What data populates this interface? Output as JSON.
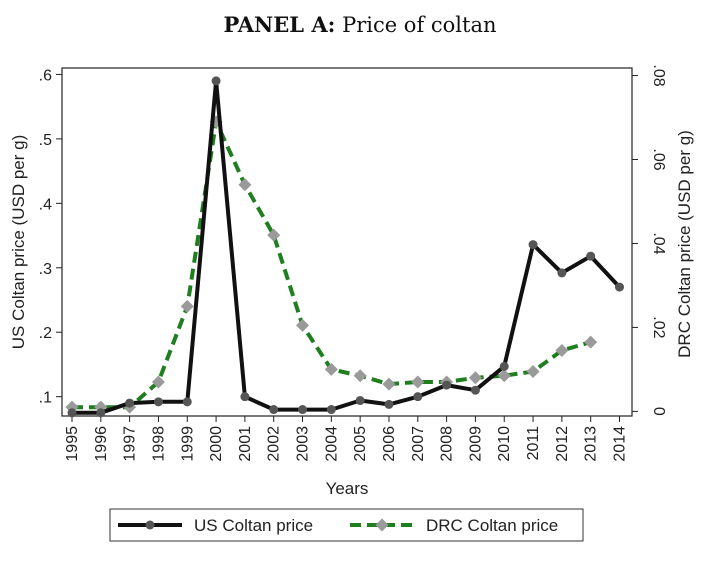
{
  "title": {
    "panel": "PANEL A:",
    "text": "Price of coltan"
  },
  "chart_data": {
    "type": "line",
    "title": "PANEL A: Price of coltan",
    "xlabel": "Years",
    "ylabel_left": "US Coltan price (USD per g)",
    "ylabel_right": "DRC Coltan price (USD per g)",
    "x": [
      1995,
      1996,
      1997,
      1998,
      1999,
      2000,
      2001,
      2002,
      2003,
      2004,
      2005,
      2006,
      2007,
      2008,
      2009,
      2010,
      2011,
      2012,
      2013,
      2014
    ],
    "x_tick_labels": [
      "1995",
      "1996",
      "1997",
      "1998",
      "1999",
      "2000",
      "2001",
      "2002",
      "2003",
      "2004",
      "2005",
      "2006",
      "2007",
      "2008",
      "2009",
      "2010",
      "2011",
      "2012",
      "2013",
      "2014"
    ],
    "y_left_range": [
      0.07,
      0.61
    ],
    "y_left_ticks": [
      0.1,
      0.2,
      0.3,
      0.4,
      0.5,
      0.6
    ],
    "y_left_tick_labels": [
      ".1",
      ".2",
      ".3",
      ".4",
      ".5",
      ".6"
    ],
    "y_right_range": [
      -0.0011,
      0.0818
    ],
    "y_right_ticks": [
      0,
      0.02,
      0.04,
      0.06,
      0.08
    ],
    "y_right_tick_labels": [
      "0",
      ".02",
      ".04",
      ".06",
      ".08"
    ],
    "legend_position": "bottom",
    "grid": false,
    "series": [
      {
        "name": "US Coltan price",
        "axis": "left",
        "color": "#111111",
        "marker_color": "#555555",
        "style": "solid",
        "marker": "circle",
        "values": [
          0.075,
          0.075,
          0.09,
          0.092,
          0.092,
          0.59,
          0.1,
          0.08,
          0.08,
          0.08,
          0.094,
          0.088,
          0.1,
          0.118,
          0.11,
          0.147,
          0.336,
          0.292,
          0.318,
          0.27
        ]
      },
      {
        "name": "DRC Coltan price",
        "axis": "right",
        "color": "#1f7f1f",
        "marker_color": "#9a9a9a",
        "style": "dashed",
        "marker": "diamond",
        "values": [
          0.001,
          0.001,
          0.001,
          0.007,
          0.025,
          0.069,
          0.054,
          0.042,
          0.0205,
          0.01,
          0.0085,
          0.0065,
          0.007,
          0.007,
          0.008,
          0.0085,
          0.0095,
          0.0145,
          0.0165,
          null
        ]
      }
    ]
  }
}
